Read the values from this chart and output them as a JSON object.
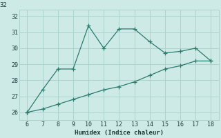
{
  "xlabel": "Humidex (Indice chaleur)",
  "x_upper": [
    6,
    7,
    8,
    9,
    10,
    11,
    12,
    13,
    14,
    15,
    16,
    17,
    18
  ],
  "y_upper": [
    26.0,
    27.4,
    28.7,
    28.7,
    31.4,
    30.0,
    31.2,
    31.2,
    30.4,
    29.7,
    29.8,
    30.0,
    29.2
  ],
  "x_lower": [
    6,
    7,
    8,
    9,
    10,
    11,
    12,
    13,
    14,
    15,
    16,
    17,
    18
  ],
  "y_lower": [
    26.0,
    26.2,
    26.5,
    26.8,
    27.1,
    27.4,
    27.6,
    27.9,
    28.3,
    28.7,
    28.9,
    29.2,
    29.2
  ],
  "line_color": "#2a7b6e",
  "bg_color": "#ceeae6",
  "grid_color": "#aad4ce",
  "text_color": "#1a3a38",
  "xlim": [
    5.5,
    18.5
  ],
  "ylim": [
    25.5,
    32.4
  ],
  "xticks": [
    6,
    7,
    8,
    9,
    10,
    11,
    12,
    13,
    14,
    15,
    16,
    17,
    18
  ],
  "yticks": [
    26,
    27,
    28,
    29,
    30,
    31,
    32
  ],
  "figsize": [
    3.2,
    2.0
  ],
  "dpi": 100
}
